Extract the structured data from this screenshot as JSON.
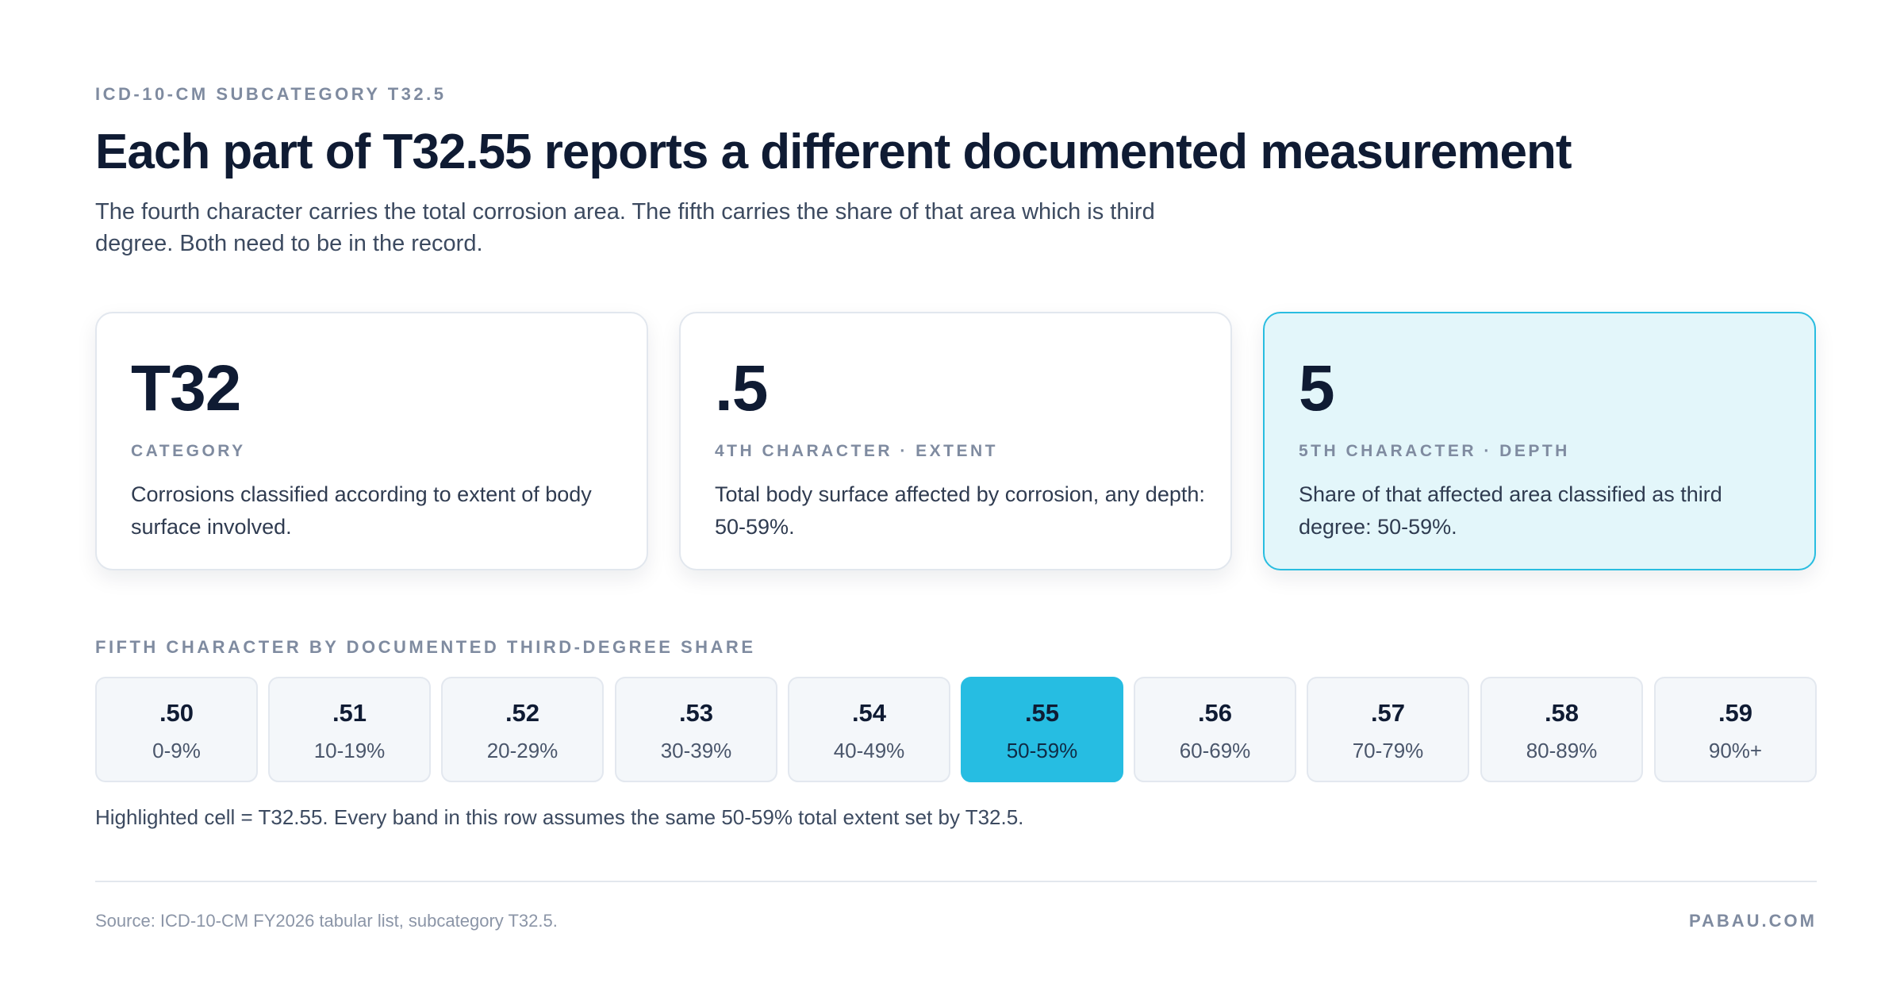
{
  "header": {
    "eyebrow": "ICD-10-CM SUBCATEGORY T32.5",
    "title": "Each part of T32.55 reports a different documented measurement",
    "subtitle": "The fourth character carries the total corrosion area. The fifth carries the share of that area which is third degree. Both need to be in the record."
  },
  "cards": [
    {
      "code": "T32",
      "label": "CATEGORY",
      "description": "Corrosions classified according to extent of body surface involved."
    },
    {
      "code": ".5",
      "label": "4TH CHARACTER · EXTENT",
      "description": "Total body surface affected by corrosion, any depth: 50-59%."
    },
    {
      "code": "5",
      "label": "5TH CHARACTER · DEPTH",
      "description": "Share of that affected area classified as third degree: 50-59%.",
      "highlighted": true
    }
  ],
  "bands_section": {
    "label": "FIFTH CHARACTER BY DOCUMENTED THIRD-DEGREE SHARE",
    "bands": [
      {
        "code": ".50",
        "range": "0-9%"
      },
      {
        "code": ".51",
        "range": "10-19%"
      },
      {
        "code": ".52",
        "range": "20-29%"
      },
      {
        "code": ".53",
        "range": "30-39%"
      },
      {
        "code": ".54",
        "range": "40-49%"
      },
      {
        "code": ".55",
        "range": "50-59%",
        "active": true
      },
      {
        "code": ".56",
        "range": "60-69%"
      },
      {
        "code": ".57",
        "range": "70-79%"
      },
      {
        "code": ".58",
        "range": "80-89%"
      },
      {
        "code": ".59",
        "range": "90%+"
      }
    ],
    "note": "Highlighted cell = T32.55. Every band in this row assumes the same 50-59% total extent set by T32.5."
  },
  "footer": {
    "source": "Source: ICD-10-CM FY2026 tabular list, subcategory T32.5.",
    "brand": "PABAU.COM"
  },
  "colors": {
    "accent": "#26bde2",
    "highlight_card_bg": "#e3f6fa",
    "text_dark": "#0f1b33",
    "text_muted": "#7f8ba0"
  }
}
